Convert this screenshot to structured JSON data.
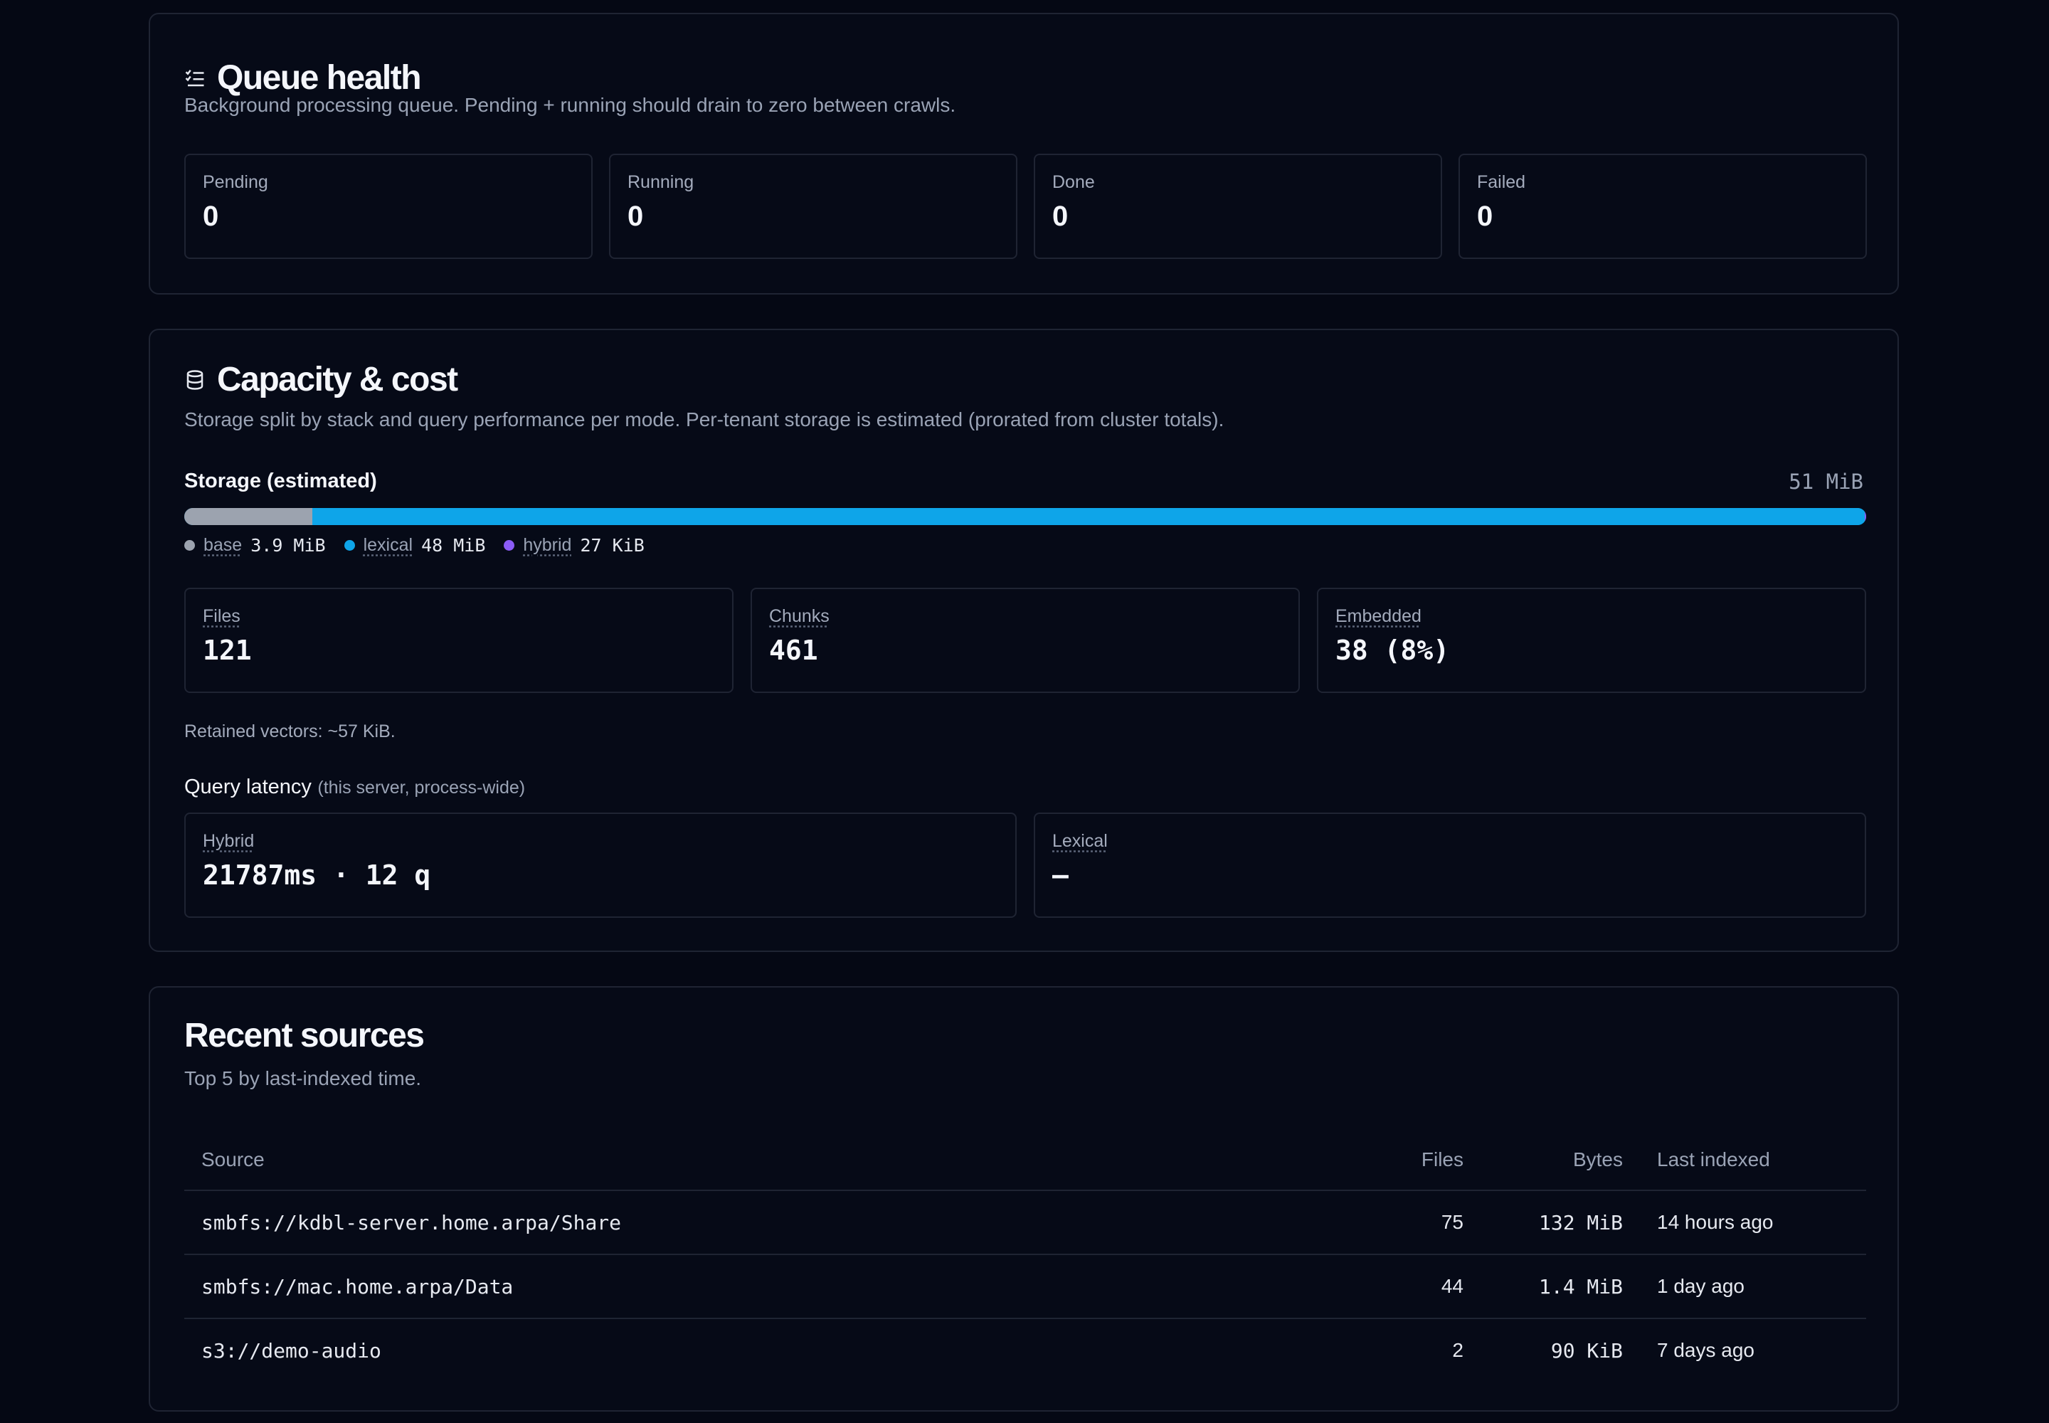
{
  "queue": {
    "title": "Queue health",
    "subtitle": "Background processing queue. Pending + running should drain to zero between crawls.",
    "stats": [
      {
        "label": "Pending",
        "value": "0"
      },
      {
        "label": "Running",
        "value": "0"
      },
      {
        "label": "Done",
        "value": "0"
      },
      {
        "label": "Failed",
        "value": "0"
      }
    ]
  },
  "capacity": {
    "title": "Capacity & cost",
    "subtitle": "Storage split by stack and query performance per mode. Per-tenant storage is estimated (prorated from cluster totals).",
    "storage_label": "Storage (estimated)",
    "storage_total": "51 MiB",
    "segments": [
      {
        "name": "base",
        "amount": "3.9 MiB",
        "color": "#9ca3af",
        "fraction": 0.076
      },
      {
        "name": "lexical",
        "amount": "48 MiB",
        "color": "#0ea5e9",
        "fraction": 0.923
      },
      {
        "name": "hybrid",
        "amount": "27 KiB",
        "color": "#8b5cf6",
        "fraction": 0.001
      }
    ],
    "counts": [
      {
        "label": "Files",
        "value": "121"
      },
      {
        "label": "Chunks",
        "value": "461"
      },
      {
        "label": "Embedded",
        "value": "38 (8%)"
      }
    ],
    "retained": "Retained vectors: ~57 KiB.",
    "latency_label": "Query latency",
    "latency_note": "(this server, process-wide)",
    "latency": [
      {
        "label": "Hybrid",
        "value": "21787ms · 12 q"
      },
      {
        "label": "Lexical",
        "value": "—"
      }
    ]
  },
  "recent": {
    "title": "Recent sources",
    "subtitle": "Top 5 by last-indexed time.",
    "columns": {
      "source": "Source",
      "files": "Files",
      "bytes": "Bytes",
      "last": "Last indexed"
    },
    "rows": [
      {
        "source": "smbfs://kdbl-server.home.arpa/Share",
        "files": "75",
        "bytes": "132 MiB",
        "last": "14 hours ago"
      },
      {
        "source": "smbfs://mac.home.arpa/Data",
        "files": "44",
        "bytes": "1.4 MiB",
        "last": "1 day ago"
      },
      {
        "source": "s3://demo-audio",
        "files": "2",
        "bytes": "90 KiB",
        "last": "7 days ago"
      }
    ]
  },
  "icons": {
    "queue": "list-check-icon",
    "capacity": "database-icon"
  }
}
